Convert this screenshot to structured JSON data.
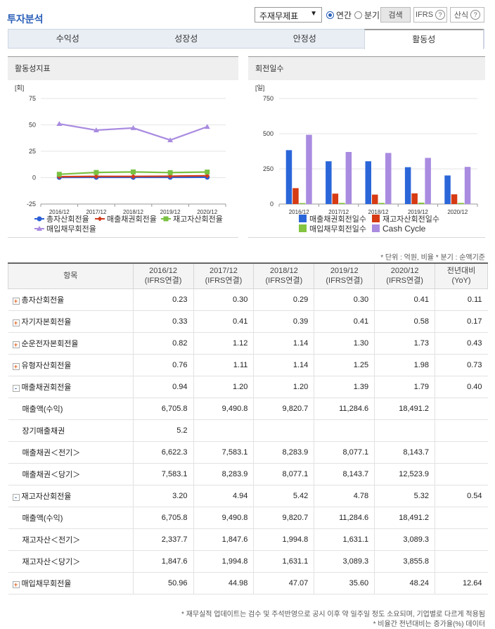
{
  "header": {
    "title": "투자분석",
    "select_value": "주재무제표",
    "radio_annual": "연간",
    "radio_quarter": "분기",
    "search": "검색",
    "ifrs": "IFRS",
    "formula": "산식",
    "help_symbol": "?"
  },
  "tabs": [
    "수익성",
    "성장성",
    "안정성",
    "활동성"
  ],
  "left_panel": {
    "title": "활동성지표",
    "unit": "[회]"
  },
  "right_panel": {
    "title": "회전일수",
    "unit": "[일]"
  },
  "unit_note": "* 단위 : 억원, 비율   * 분기 : 순액기준",
  "chart_data": [
    {
      "type": "line",
      "title": "활동성지표",
      "ylabel": "[회]",
      "ylim": [
        -25,
        75
      ],
      "yticks": [
        "75",
        "50",
        "25",
        "0",
        "-25"
      ],
      "categories": [
        "2016/12",
        "2017/12",
        "2018/12",
        "2019/12",
        "2020/12"
      ],
      "series": [
        {
          "name": "총자산회전율",
          "color": "#2a5fd6",
          "values": [
            0.23,
            0.3,
            0.29,
            0.3,
            0.41
          ]
        },
        {
          "name": "매출채권회전율",
          "color": "#d13b1c",
          "values": [
            0.94,
            1.2,
            1.2,
            1.39,
            1.79
          ]
        },
        {
          "name": "재고자산회전율",
          "color": "#7ac142",
          "values": [
            3.2,
            4.94,
            5.42,
            4.78,
            5.32
          ]
        },
        {
          "name": "매입채무회전율",
          "color": "#a98be0",
          "values": [
            50.96,
            44.98,
            47.07,
            35.6,
            48.24
          ]
        }
      ]
    },
    {
      "type": "bar",
      "title": "회전일수",
      "ylabel": "[일]",
      "ylim": [
        0,
        750
      ],
      "yticks": [
        "750",
        "500",
        "250",
        "0"
      ],
      "categories": [
        "2016/12",
        "2017/12",
        "2018/12",
        "2019/12",
        "2020/12"
      ],
      "series": [
        {
          "name": "매출채권회전일수",
          "color": "#2b66d9",
          "values": [
            383,
            304,
            304,
            262,
            203
          ]
        },
        {
          "name": "재고자산회전일수",
          "color": "#d63b14",
          "values": [
            113,
            74,
            67,
            76,
            69
          ]
        },
        {
          "name": "매입채무회전일수",
          "color": "#84c440",
          "values": [
            7,
            8,
            8,
            10,
            8
          ]
        },
        {
          "name": "Cash Cycle",
          "color": "#a98be0",
          "values": [
            492,
            370,
            363,
            328,
            264
          ]
        }
      ]
    }
  ],
  "table": {
    "headers": [
      [
        "항목",
        ""
      ],
      [
        "2016/12",
        "(IFRS연결)"
      ],
      [
        "2017/12",
        "(IFRS연결)"
      ],
      [
        "2018/12",
        "(IFRS연결)"
      ],
      [
        "2019/12",
        "(IFRS연결)"
      ],
      [
        "2020/12",
        "(IFRS연결)"
      ],
      [
        "전년대비",
        "(YoY)"
      ]
    ],
    "rows": [
      {
        "label": "총자산회전율",
        "toggle": "+",
        "values": [
          "0.23",
          "0.30",
          "0.29",
          "0.30",
          "0.41",
          "0.11"
        ]
      },
      {
        "label": "자기자본회전율",
        "toggle": "+",
        "values": [
          "0.33",
          "0.41",
          "0.39",
          "0.41",
          "0.58",
          "0.17"
        ]
      },
      {
        "label": "순운전자본회전율",
        "toggle": "+",
        "values": [
          "0.82",
          "1.12",
          "1.14",
          "1.30",
          "1.73",
          "0.43"
        ]
      },
      {
        "label": "유형자산회전율",
        "toggle": "+",
        "values": [
          "0.76",
          "1.11",
          "1.14",
          "1.25",
          "1.98",
          "0.73"
        ]
      },
      {
        "label": "매출채권회전율",
        "toggle": "-",
        "values": [
          "0.94",
          "1.20",
          "1.20",
          "1.39",
          "1.79",
          "0.40"
        ]
      },
      {
        "label": "매출액(수익)",
        "toggle": "",
        "values": [
          "6,705.8",
          "9,490.8",
          "9,820.7",
          "11,284.6",
          "18,491.2",
          ""
        ]
      },
      {
        "label": "장기매출채권",
        "toggle": "",
        "values": [
          "5.2",
          "",
          "",
          "",
          "",
          ""
        ]
      },
      {
        "label": "매출채권＜전기＞",
        "toggle": "",
        "values": [
          "6,622.3",
          "7,583.1",
          "8,283.9",
          "8,077.1",
          "8,143.7",
          ""
        ]
      },
      {
        "label": "매출채권＜당기＞",
        "toggle": "",
        "values": [
          "7,583.1",
          "8,283.9",
          "8,077.1",
          "8,143.7",
          "12,523.9",
          ""
        ]
      },
      {
        "label": "재고자산회전율",
        "toggle": "-",
        "values": [
          "3.20",
          "4.94",
          "5.42",
          "4.78",
          "5.32",
          "0.54"
        ]
      },
      {
        "label": "매출액(수익)",
        "toggle": "",
        "values": [
          "6,705.8",
          "9,490.8",
          "9,820.7",
          "11,284.6",
          "18,491.2",
          ""
        ]
      },
      {
        "label": "재고자산＜전기＞",
        "toggle": "",
        "values": [
          "2,337.7",
          "1,847.6",
          "1,994.8",
          "1,631.1",
          "3,089.3",
          ""
        ]
      },
      {
        "label": "재고자산＜당기＞",
        "toggle": "",
        "values": [
          "1,847.6",
          "1,994.8",
          "1,631.1",
          "3,089.3",
          "3,855.8",
          ""
        ]
      },
      {
        "label": "매입채무회전율",
        "toggle": "+",
        "values": [
          "50.96",
          "44.98",
          "47.07",
          "35.60",
          "48.24",
          "12.64"
        ]
      }
    ]
  },
  "footnotes": [
    "* 재무실적 업데이트는 검수 및 주석반영으로 공시 이후 약 일주일 정도 소요되며, 기업별로 다르게 적용됨",
    "* 비율간 전년대비는 증가율(%) 데이터"
  ]
}
